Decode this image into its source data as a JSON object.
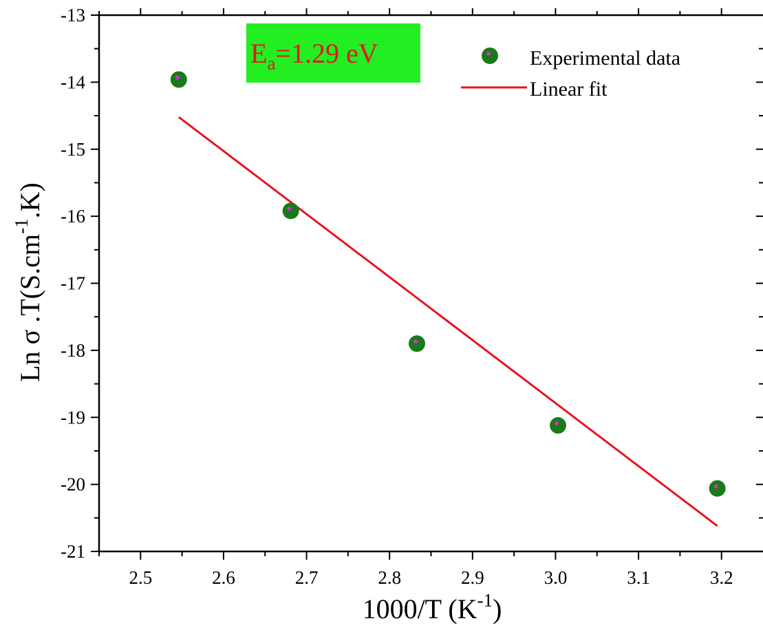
{
  "chart_data": {
    "type": "scatter",
    "title": "",
    "xlabel": {
      "main": "1000/T (K",
      "sup": "-1",
      "tail": ")"
    },
    "ylabel": {
      "main": "Ln σ .T(S.cm",
      "sup": "-1",
      "tail": ".K)"
    },
    "xlim": [
      2.45,
      3.25
    ],
    "ylim": [
      -21,
      -13
    ],
    "x_ticks": [
      "2.5",
      "2.6",
      "2.7",
      "2.8",
      "2.9",
      "3.0",
      "3.1",
      "3.2"
    ],
    "y_ticks": [
      "-13",
      "-14",
      "-15",
      "-16",
      "-17",
      "-18",
      "-19",
      "-20",
      "-21"
    ],
    "grid": false,
    "legend_position": "top-right",
    "series": [
      {
        "name": "Experimental data",
        "kind": "scatter",
        "color": "#1a7a1a",
        "marker_center_color": "#cc33cc",
        "points": [
          {
            "x": 2.546,
            "y": -13.96
          },
          {
            "x": 2.681,
            "y": -15.92
          },
          {
            "x": 2.833,
            "y": -17.9
          },
          {
            "x": 3.003,
            "y": -19.12
          },
          {
            "x": 3.195,
            "y": -20.06
          }
        ]
      },
      {
        "name": "Linear fit",
        "kind": "line",
        "color": "#e8141e",
        "points": [
          {
            "x": 2.546,
            "y": -14.52
          },
          {
            "x": 3.195,
            "y": -20.62
          }
        ]
      }
    ],
    "annotation": {
      "main": "E",
      "sub": "a",
      "tail": "=1.29 eV",
      "text_color": "#e8141e",
      "background": "#22ee22"
    }
  }
}
